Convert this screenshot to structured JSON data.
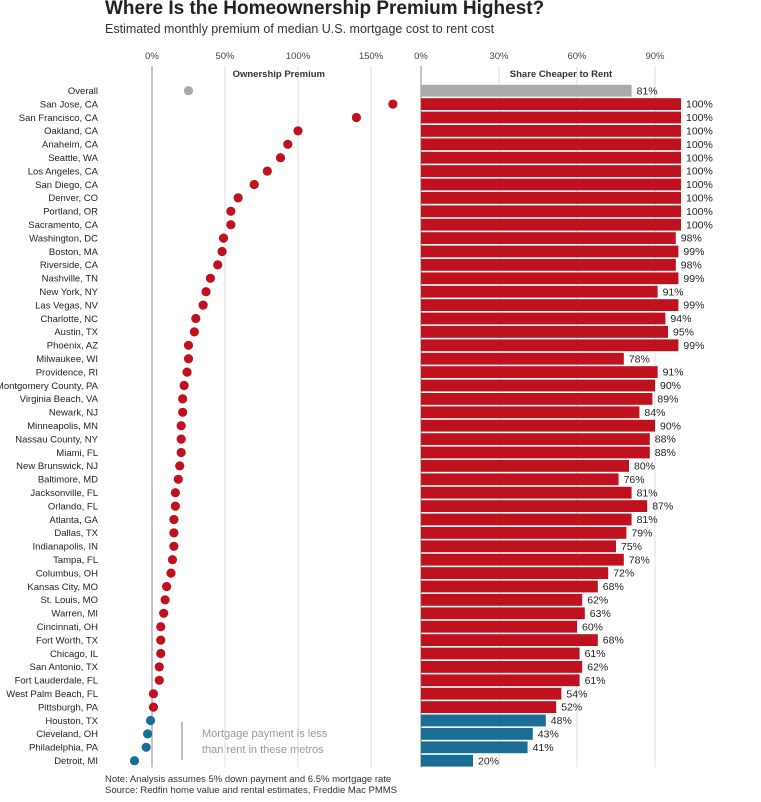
{
  "title": "Where Is the Homeownership Premium Highest?",
  "subtitle": "Estimated monthly premium of median U.S. mortgage cost to rent cost",
  "notes": {
    "line1": "Note: Analysis assumes 5% down payment and 6.5% mortgage rate",
    "line2": "Source: Redfin home value and rental estimates, Freddie Mac PMMS"
  },
  "annotation": {
    "line1": "Mortgage payment is less",
    "line2": "than rent in these metros"
  },
  "colors": {
    "premium": "#c0111f",
    "discount": "#1a6e96",
    "overall": "#aaaaaa",
    "grid": "#dddddd",
    "zero_axis": "#888888"
  },
  "chart_data": [
    {
      "type": "scatter",
      "xlabel": "Ownership Premium",
      "xlim": [
        -0.15,
        1.75
      ],
      "ticks": [
        {
          "value": 0,
          "label": "0%"
        },
        {
          "value": 0.5,
          "label": "50%"
        },
        {
          "value": 1.0,
          "label": "100%"
        },
        {
          "value": 1.5,
          "label": "150%"
        }
      ],
      "categories": [
        "Overall",
        "San Jose, CA",
        "San Francisco, CA",
        "Oakland, CA",
        "Anaheim, CA",
        "Seattle, WA",
        "Los Angeles, CA",
        "San Diego, CA",
        "Denver, CO",
        "Portland, OR",
        "Sacramento, CA",
        "Washington, DC",
        "Boston, MA",
        "Riverside, CA",
        "Nashville, TN",
        "New York, NY",
        "Las Vegas, NV",
        "Charlotte, NC",
        "Austin, TX",
        "Phoenix, AZ",
        "Milwaukee, WI",
        "Providence, RI",
        "Montgomery County, PA",
        "Virginia Beach, VA",
        "Newark, NJ",
        "Minneapolis, MN",
        "Nassau County, NY",
        "Miami, FL",
        "New Brunswick, NJ",
        "Baltimore, MD",
        "Jacksonville, FL",
        "Orlando, FL",
        "Atlanta, GA",
        "Dallas, TX",
        "Indianapolis, IN",
        "Tampa, FL",
        "Columbus, OH",
        "Kansas City, MO",
        "St. Louis, MO",
        "Warren, MI",
        "Cincinnati, OH",
        "Fort Worth, TX",
        "Chicago, IL",
        "San Antonio, TX",
        "Fort Lauderdale, FL",
        "West Palm Beach, FL",
        "Pittsburgh, PA",
        "Houston, TX",
        "Cleveland, OH",
        "Philadelphia, PA",
        "Detroit, MI"
      ],
      "values": [
        0.25,
        1.65,
        1.4,
        1.0,
        0.93,
        0.88,
        0.79,
        0.7,
        0.59,
        0.54,
        0.54,
        0.49,
        0.48,
        0.45,
        0.4,
        0.37,
        0.35,
        0.3,
        0.29,
        0.25,
        0.25,
        0.24,
        0.22,
        0.21,
        0.21,
        0.2,
        0.2,
        0.2,
        0.19,
        0.18,
        0.16,
        0.16,
        0.15,
        0.15,
        0.15,
        0.14,
        0.13,
        0.1,
        0.09,
        0.08,
        0.06,
        0.06,
        0.06,
        0.05,
        0.05,
        0.01,
        0.01,
        -0.01,
        -0.03,
        -0.04,
        -0.12
      ]
    },
    {
      "type": "bar",
      "xlabel": "Share Cheaper to Rent",
      "xlim": [
        0,
        100
      ],
      "ticks": [
        {
          "value": 0,
          "label": "0%"
        },
        {
          "value": 30,
          "label": "30%"
        },
        {
          "value": 60,
          "label": "60%"
        },
        {
          "value": 90,
          "label": "90%"
        }
      ],
      "values": [
        81,
        100,
        100,
        100,
        100,
        100,
        100,
        100,
        100,
        100,
        100,
        98,
        99,
        98,
        99,
        91,
        99,
        94,
        95,
        99,
        78,
        91,
        90,
        89,
        84,
        90,
        88,
        88,
        80,
        76,
        81,
        87,
        81,
        79,
        75,
        78,
        72,
        68,
        62,
        63,
        60,
        68,
        61,
        62,
        61,
        54,
        52,
        48,
        43,
        41,
        20
      ],
      "labels": [
        "81%",
        "100%",
        "100%",
        "100%",
        "100%",
        "100%",
        "100%",
        "100%",
        "100%",
        "100%",
        "100%",
        "98%",
        "99%",
        "98%",
        "99%",
        "91%",
        "99%",
        "94%",
        "95%",
        "99%",
        "78%",
        "91%",
        "90%",
        "89%",
        "84%",
        "90%",
        "88%",
        "88%",
        "80%",
        "76%",
        "81%",
        "87%",
        "81%",
        "79%",
        "75%",
        "78%",
        "72%",
        "68%",
        "62%",
        "63%",
        "60%",
        "68%",
        "61%",
        "62%",
        "61%",
        "54%",
        "52%",
        "48%",
        "43%",
        "41%",
        "20%"
      ]
    }
  ]
}
